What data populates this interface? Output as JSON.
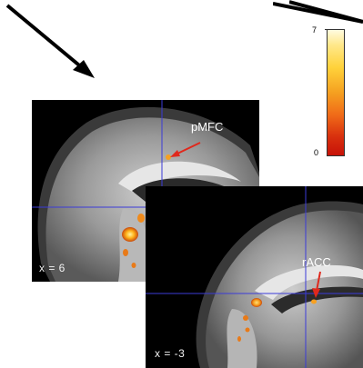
{
  "figure": {
    "panels": [
      {
        "slice_label": "x = 6",
        "roi_label": "pMFC"
      },
      {
        "slice_label": "x = -3",
        "roi_label": "rACC"
      }
    ],
    "colorbar": {
      "max_label": "7",
      "min_label": "0",
      "colors": [
        "#fffbe0",
        "#ffd23a",
        "#f06a18",
        "#c71208"
      ]
    },
    "colors": {
      "arrow": "#000000",
      "roi_arrow": "#e0281c",
      "crosshair": "#3b3bd8",
      "activation": "#ffb21a"
    }
  }
}
